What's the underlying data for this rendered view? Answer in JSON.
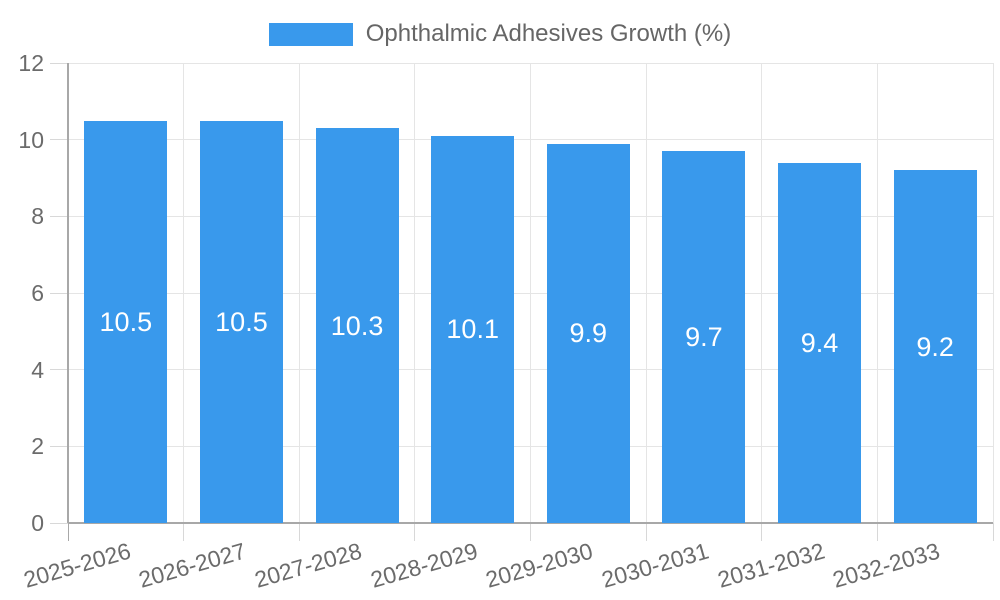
{
  "chart_data": {
    "type": "bar",
    "title": "Ophthalmic Adhesives Growth (%)",
    "categories": [
      "2025-2026",
      "2026-2027",
      "2027-2028",
      "2028-2029",
      "2029-2030",
      "2030-2031",
      "2031-2032",
      "2032-2033"
    ],
    "values": [
      10.5,
      10.5,
      10.3,
      10.1,
      9.9,
      9.7,
      9.4,
      9.2
    ],
    "value_labels": [
      "10.5",
      "10.5",
      "10.3",
      "10.1",
      "9.9",
      "9.7",
      "9.4",
      "9.2"
    ],
    "yticks": [
      0,
      2,
      4,
      6,
      8,
      10,
      12
    ],
    "ytick_labels": [
      "0",
      "2",
      "4",
      "6",
      "8",
      "10",
      "12"
    ],
    "ylim": [
      0,
      12
    ],
    "xlabel": "",
    "ylabel": "",
    "grid": true,
    "legend_position": "top",
    "colors": {
      "bar": "#3999ec",
      "bar_value_text": "#ffffff",
      "axis_text": "#6b6b6b",
      "legend_text": "#666666",
      "gridline": "#e5e5e5",
      "tick_mark": "#d8d8d8",
      "axis_line": "#a8a8a8",
      "background": "#ffffff"
    }
  }
}
